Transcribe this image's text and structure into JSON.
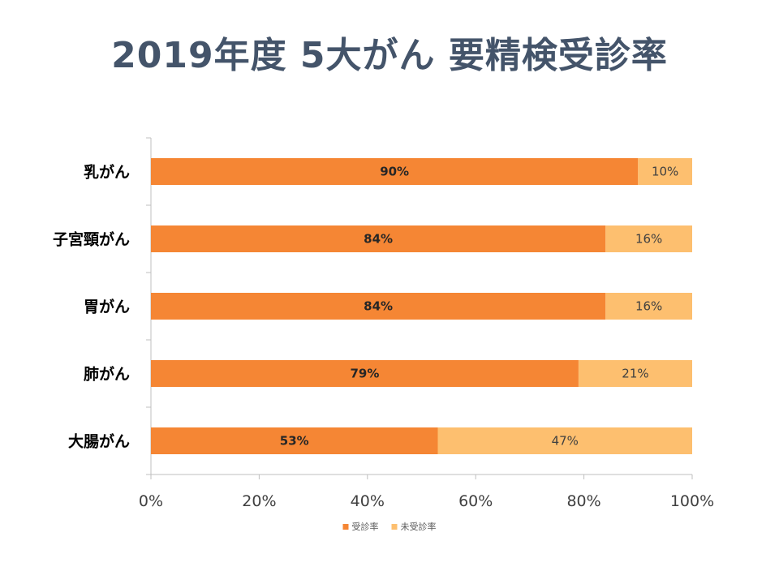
{
  "title": "2019年度 5大がん 要精検受診率",
  "chart_data": {
    "type": "bar",
    "orientation": "horizontal",
    "stacked": true,
    "categories": [
      "乳がん",
      "子宮頸がん",
      "胃がん",
      "肺がん",
      "大腸がん"
    ],
    "series": [
      {
        "name": "受診率",
        "values": [
          90,
          84,
          84,
          79,
          53
        ],
        "color": "#f58634"
      },
      {
        "name": "未受診率",
        "values": [
          10,
          16,
          16,
          21,
          47
        ],
        "color": "#fdbf6f"
      }
    ],
    "data_labels_primary": [
      "90%",
      "84%",
      "84%",
      "79%",
      "53%"
    ],
    "data_labels_secondary": [
      "10%",
      "16%",
      "16%",
      "21%",
      "47%"
    ],
    "xticks": [
      0,
      20,
      40,
      60,
      80,
      100
    ],
    "xtick_labels": [
      "0%",
      "20%",
      "40%",
      "60%",
      "80%",
      "100%"
    ],
    "xlim": [
      0,
      100
    ],
    "xlabel": "",
    "ylabel": "",
    "grid": false,
    "legend": "bottom"
  }
}
